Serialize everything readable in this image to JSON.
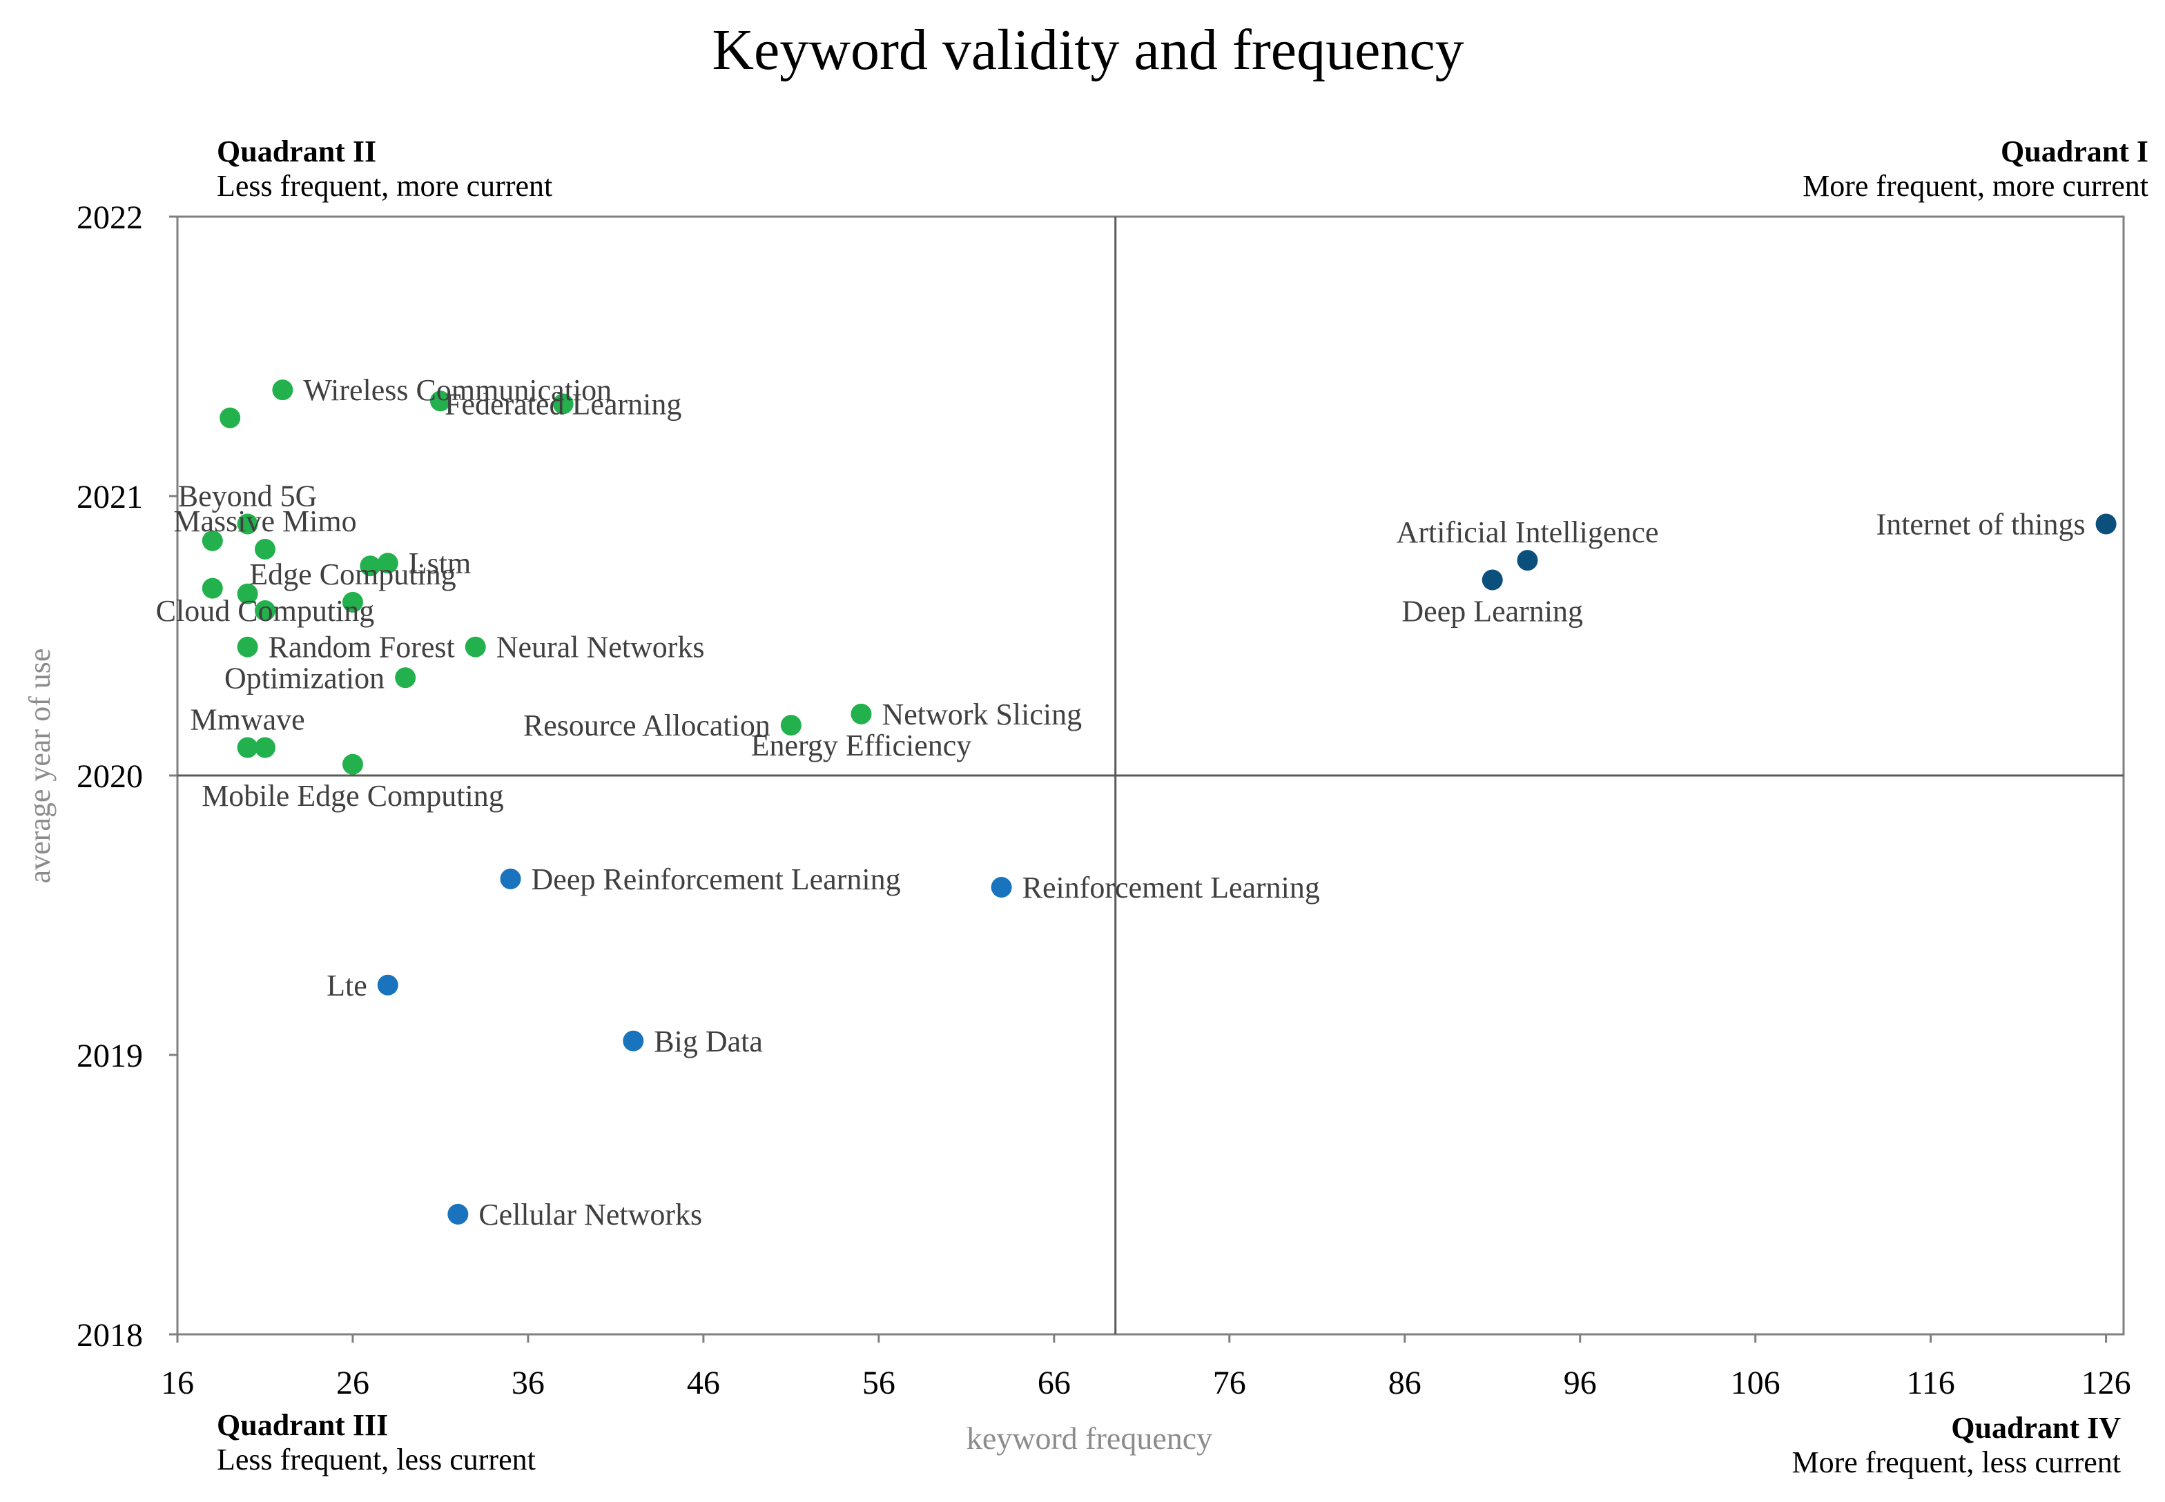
{
  "chart_data": {
    "type": "scatter",
    "title": "Keyword validity and frequency",
    "xlabel": "keyword frequency",
    "ylabel": "average year of use",
    "xlim": [
      16,
      127
    ],
    "ylim": [
      2018,
      2022
    ],
    "xticks": [
      "16",
      "26",
      "36",
      "46",
      "56",
      "66",
      "76",
      "86",
      "96",
      "106",
      "116",
      "126"
    ],
    "yticks": [
      "2018",
      "2019",
      "2020",
      "2021",
      "2022"
    ],
    "divider": {
      "x": 69.5,
      "y": 2020
    },
    "quadrants": [
      {
        "id": "q2",
        "title": "Quadrant II",
        "subtitle": "Less frequent, more current",
        "position": "top-left"
      },
      {
        "id": "q1",
        "title": "Quadrant I",
        "subtitle": "More frequent, more current",
        "position": "top-right"
      },
      {
        "id": "q3",
        "title": "Quadrant III",
        "subtitle": "Less frequent, less current",
        "position": "bottom-left"
      },
      {
        "id": "q4",
        "title": "Quadrant IV",
        "subtitle": "More frequent, less current",
        "position": "bottom-right"
      }
    ],
    "colors": {
      "q1": "#0b4f7c",
      "q2": "#22b14c",
      "q3": "#1a73bd"
    },
    "points": [
      {
        "label": "Wireless Communication",
        "x": 22,
        "y": 2021.38,
        "quadrant": "q2",
        "anchor": "right"
      },
      {
        "label": "",
        "x": 19,
        "y": 2021.28,
        "quadrant": "q2",
        "anchor": "none"
      },
      {
        "label": "",
        "x": 31,
        "y": 2021.34,
        "quadrant": "q2",
        "anchor": "none"
      },
      {
        "label": "Federated Learning",
        "x": 38,
        "y": 2021.33,
        "quadrant": "q2",
        "anchor": "center"
      },
      {
        "label": "Beyond 5G",
        "x": 20,
        "y": 2020.9,
        "quadrant": "q2",
        "anchor": "above"
      },
      {
        "label": "",
        "x": 18,
        "y": 2020.84,
        "quadrant": "q2",
        "anchor": "none"
      },
      {
        "label": "Massive Mimo",
        "x": 21,
        "y": 2020.81,
        "quadrant": "q2",
        "anchor": "above"
      },
      {
        "label": "",
        "x": 27,
        "y": 2020.75,
        "quadrant": "q2",
        "anchor": "none"
      },
      {
        "label": "Lstm",
        "x": 28,
        "y": 2020.76,
        "quadrant": "q2",
        "anchor": "right"
      },
      {
        "label": "",
        "x": 18,
        "y": 2020.67,
        "quadrant": "q2",
        "anchor": "none"
      },
      {
        "label": "",
        "x": 20,
        "y": 2020.65,
        "quadrant": "q2",
        "anchor": "none"
      },
      {
        "label": "Edge Computing",
        "x": 26,
        "y": 2020.62,
        "quadrant": "q2",
        "anchor": "above"
      },
      {
        "label": "Cloud Computing",
        "x": 21,
        "y": 2020.59,
        "quadrant": "q2",
        "anchor": "center"
      },
      {
        "label": "",
        "x": 20,
        "y": 2020.46,
        "quadrant": "q2",
        "anchor": "none"
      },
      {
        "label": "Random Forest",
        "x": 33,
        "y": 2020.46,
        "quadrant": "q2",
        "anchor": "left"
      },
      {
        "label": "Neural Networks",
        "x": 33,
        "y": 2020.46,
        "quadrant": "q2",
        "anchor": "right"
      },
      {
        "label": "Optimization",
        "x": 29,
        "y": 2020.35,
        "quadrant": "q2",
        "anchor": "left"
      },
      {
        "label": "Mmwave",
        "x": 20,
        "y": 2020.1,
        "quadrant": "q2",
        "anchor": "above"
      },
      {
        "label": "",
        "x": 21,
        "y": 2020.1,
        "quadrant": "q2",
        "anchor": "none"
      },
      {
        "label": "Mobile Edge Computing",
        "x": 26,
        "y": 2020.04,
        "quadrant": "q2",
        "anchor": "below"
      },
      {
        "label": "Resource Allocation",
        "x": 51,
        "y": 2020.18,
        "quadrant": "q2",
        "anchor": "left"
      },
      {
        "label": "Network Slicing",
        "x": 55,
        "y": 2020.22,
        "quadrant": "q2",
        "anchor": "right"
      },
      {
        "label": "Energy Efficiency",
        "x": 55,
        "y": 2020.22,
        "quadrant": "q2",
        "anchor": "below"
      },
      {
        "label": "Artificial  Intelligence",
        "x": 93,
        "y": 2020.77,
        "quadrant": "q1",
        "anchor": "above"
      },
      {
        "label": "Deep Learning",
        "x": 91,
        "y": 2020.7,
        "quadrant": "q1",
        "anchor": "below"
      },
      {
        "label": "Internet of things",
        "x": 126,
        "y": 2020.9,
        "quadrant": "q1",
        "anchor": "left"
      },
      {
        "label": "Deep Reinforcement Learning",
        "x": 35,
        "y": 2019.63,
        "quadrant": "q3",
        "anchor": "right"
      },
      {
        "label": "Reinforcement Learning",
        "x": 63,
        "y": 2019.6,
        "quadrant": "q3",
        "anchor": "right"
      },
      {
        "label": "Lte",
        "x": 28,
        "y": 2019.25,
        "quadrant": "q3",
        "anchor": "left"
      },
      {
        "label": "Big Data",
        "x": 42,
        "y": 2019.05,
        "quadrant": "q3",
        "anchor": "right"
      },
      {
        "label": "Cellular  Networks",
        "x": 32,
        "y": 2018.43,
        "quadrant": "q3",
        "anchor": "right"
      }
    ]
  }
}
